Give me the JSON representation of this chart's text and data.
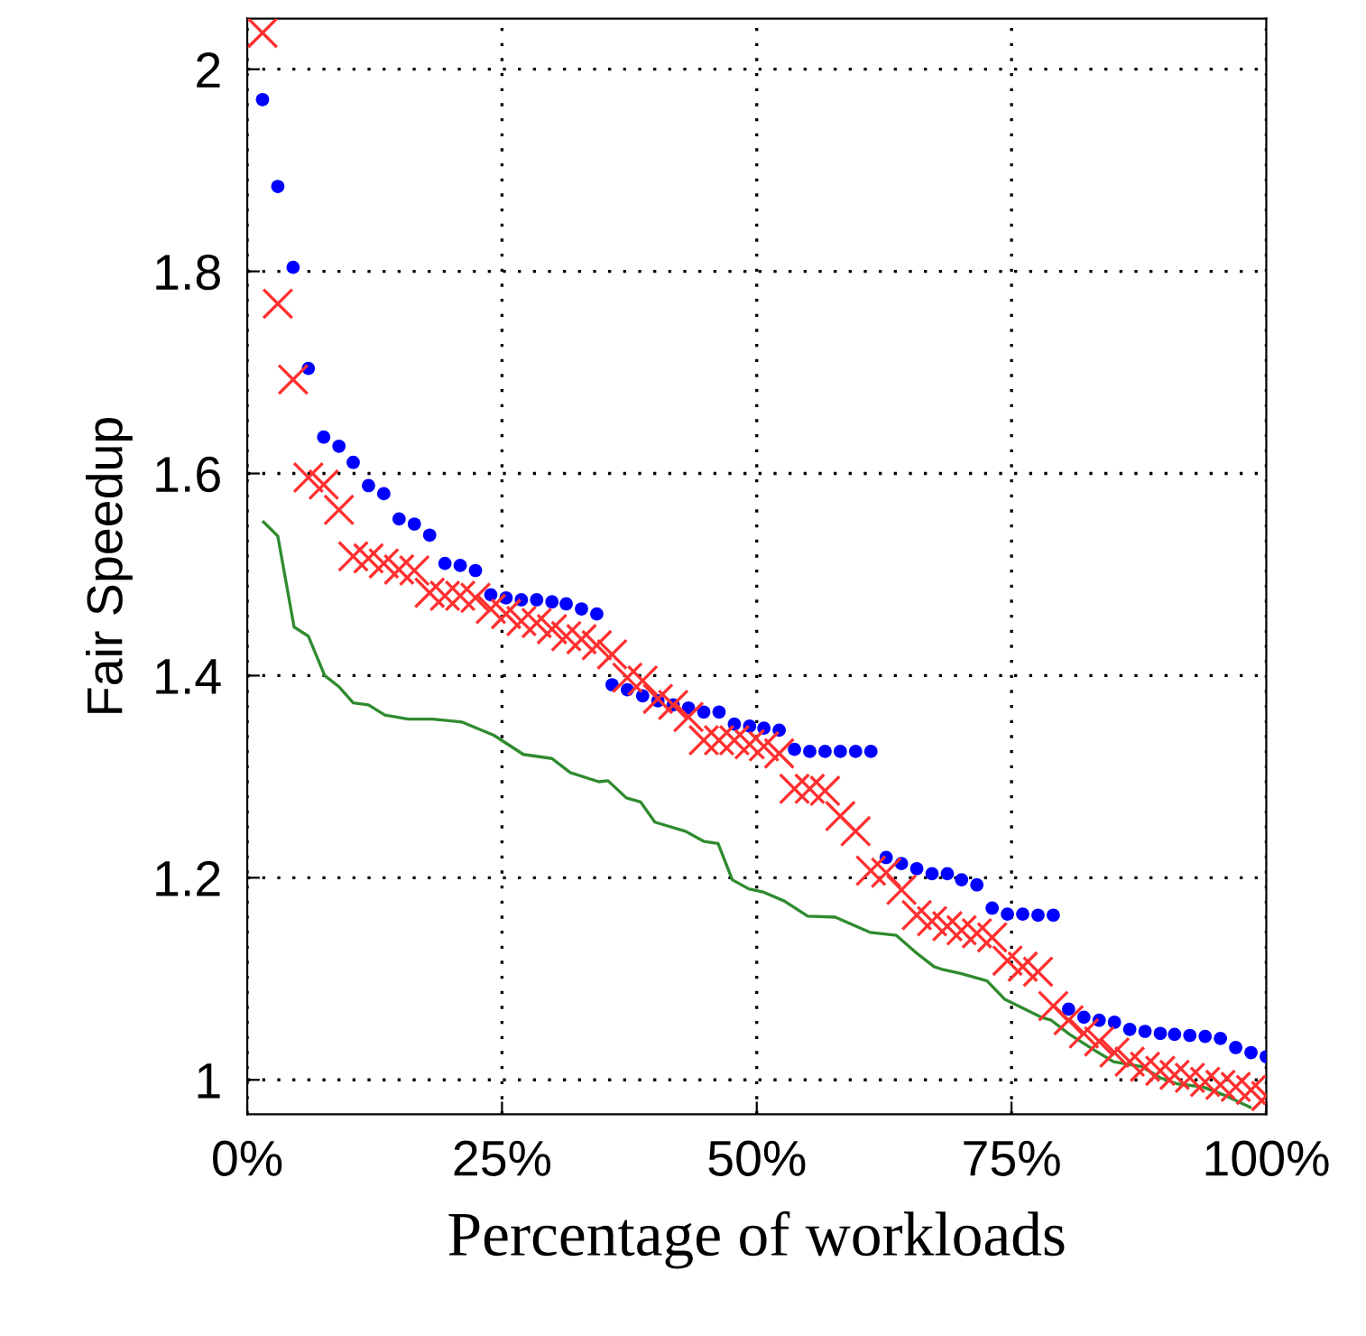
{
  "chart_data": {
    "type": "scatter",
    "xlabel": "Percentage of workloads",
    "ylabel": "Fair Speedup",
    "xlim": [
      0,
      100
    ],
    "ylim": [
      0.966,
      2.05
    ],
    "xticks": [
      {
        "value": 0,
        "label": "0%"
      },
      {
        "value": 25,
        "label": "25%"
      },
      {
        "value": 50,
        "label": "50%"
      },
      {
        "value": 75,
        "label": "75%"
      },
      {
        "value": 100,
        "label": "100%"
      }
    ],
    "yticks": [
      1,
      1.2,
      1.4,
      1.6,
      1.8,
      2
    ],
    "grid": true,
    "x": [
      1.5,
      3.0,
      4.5,
      6.0,
      7.5,
      9.0,
      10.4,
      11.9,
      13.4,
      14.9,
      16.4,
      17.9,
      19.4,
      20.9,
      22.4,
      23.9,
      25.4,
      26.9,
      28.4,
      29.9,
      31.3,
      32.8,
      34.3,
      35.8,
      37.3,
      38.8,
      40.3,
      41.8,
      43.3,
      44.8,
      46.3,
      47.8,
      49.3,
      50.7,
      52.2,
      53.7,
      55.2,
      56.7,
      58.2,
      59.7,
      61.2,
      62.7,
      64.2,
      65.7,
      67.2,
      68.7,
      70.1,
      71.6,
      73.1,
      74.6,
      76.1,
      77.6,
      79.1,
      80.6,
      82.1,
      83.6,
      85.1,
      86.6,
      88.1,
      89.6,
      91.0,
      92.5,
      94.0,
      95.5,
      97.0,
      98.5,
      100
    ],
    "series": [
      {
        "marker": "circle",
        "color": "#0000ff",
        "values": [
          1.97,
          1.884,
          1.804,
          1.704,
          1.636,
          1.627,
          1.611,
          1.588,
          1.58,
          1.555,
          1.55,
          1.539,
          1.511,
          1.509,
          1.504,
          1.48,
          1.477,
          1.475,
          1.475,
          1.473,
          1.471,
          1.466,
          1.461,
          1.391,
          1.386,
          1.38,
          1.375,
          1.371,
          1.368,
          1.364,
          1.364,
          1.352,
          1.35,
          1.348,
          1.346,
          1.327,
          1.325,
          1.325,
          1.325,
          1.325,
          1.325,
          1.22,
          1.214,
          1.209,
          1.204,
          1.204,
          1.198,
          1.193,
          1.17,
          1.164,
          1.164,
          1.163,
          1.163,
          1.07,
          1.062,
          1.059,
          1.057,
          1.05,
          1.048,
          1.046,
          1.045,
          1.044,
          1.043,
          1.041,
          1.032,
          1.027,
          1.023
        ]
      },
      {
        "marker": "cross",
        "color": "#ff3030",
        "values": [
          2.036,
          1.768,
          1.693,
          1.596,
          1.589,
          1.564,
          1.518,
          1.516,
          1.511,
          1.505,
          1.504,
          1.482,
          1.479,
          1.479,
          1.477,
          1.466,
          1.461,
          1.454,
          1.452,
          1.446,
          1.439,
          1.436,
          1.43,
          1.421,
          1.398,
          1.395,
          1.377,
          1.371,
          1.359,
          1.336,
          1.336,
          1.336,
          1.332,
          1.33,
          1.323,
          1.288,
          1.288,
          1.286,
          1.261,
          1.246,
          1.207,
          1.205,
          1.188,
          1.163,
          1.157,
          1.152,
          1.148,
          1.145,
          1.141,
          1.118,
          1.112,
          1.107,
          1.073,
          1.059,
          1.046,
          1.038,
          1.027,
          1.018,
          1.013,
          1.009,
          1.005,
          1.002,
          0.998,
          0.995,
          0.993,
          0.99,
          0.984
        ]
      },
      {
        "type": "line",
        "marker": "none",
        "line_style": "solid",
        "color": "#2e8b2e",
        "x": [
          1.6,
          3.0,
          4.6,
          6.0,
          7.6,
          9.0,
          10.4,
          11.9,
          13.5,
          15.8,
          18.2,
          21.1,
          24.2,
          27.1,
          29.9,
          31.7,
          34.5,
          35.4,
          37.2,
          38.6,
          40.0,
          43.0,
          44.8,
          46.2,
          47.6,
          49.2,
          50.6,
          52.7,
          55.0,
          57.7,
          61.1,
          63.7,
          65.5,
          67.4,
          68.3,
          70.1,
          72.6,
          74.3,
          76.1,
          77.9,
          78.9,
          80.7,
          83.2,
          85.0,
          87.8,
          89.6,
          91.3,
          93.8,
          96.1,
          98.4
        ],
        "values": [
          1.552,
          1.538,
          1.448,
          1.439,
          1.4,
          1.389,
          1.373,
          1.371,
          1.361,
          1.357,
          1.357,
          1.354,
          1.341,
          1.322,
          1.318,
          1.304,
          1.295,
          1.296,
          1.279,
          1.275,
          1.255,
          1.246,
          1.236,
          1.234,
          1.198,
          1.189,
          1.186,
          1.177,
          1.162,
          1.161,
          1.146,
          1.143,
          1.127,
          1.112,
          1.109,
          1.105,
          1.098,
          1.08,
          1.071,
          1.062,
          1.059,
          1.045,
          1.029,
          1.018,
          1.013,
          1.002,
          0.996,
          0.993,
          0.984,
          0.973
        ]
      }
    ]
  }
}
